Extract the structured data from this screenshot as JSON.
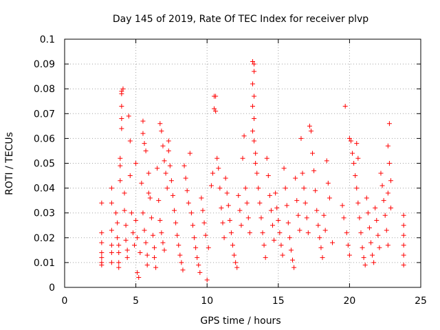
{
  "chart_data": {
    "type": "scatter",
    "title": "Day 145 of 2019, Rate Of TEC Index for receiver plvp",
    "xlabel": "GPS time / hours",
    "ylabel": "ROTI / TECUs",
    "xlim": [
      0,
      25
    ],
    "ylim": [
      0,
      0.1
    ],
    "x_ticks": [
      0,
      5,
      10,
      15,
      20,
      25
    ],
    "y_ticks": [
      0,
      0.01,
      0.02,
      0.03,
      0.04,
      0.05,
      0.06,
      0.07,
      0.08,
      0.09,
      0.1
    ],
    "x_tick_labels": [
      "0",
      "5",
      "10",
      "15",
      "20",
      "25"
    ],
    "y_tick_labels": [
      "0",
      "0.01",
      "0.02",
      "0.03",
      "0.04",
      "0.05",
      "0.06",
      "0.07",
      "0.08",
      "0.09",
      "0.1"
    ],
    "grid": true,
    "marker": "+",
    "series": [
      {
        "name": "ROTI",
        "color": "#ff0000",
        "points": [
          [
            2.6,
            0.034
          ],
          [
            2.6,
            0.022
          ],
          [
            2.6,
            0.018
          ],
          [
            2.6,
            0.014
          ],
          [
            2.6,
            0.012
          ],
          [
            2.6,
            0.01
          ],
          [
            2.6,
            0.009
          ],
          [
            3.3,
            0.04
          ],
          [
            3.3,
            0.034
          ],
          [
            3.3,
            0.023
          ],
          [
            3.3,
            0.017
          ],
          [
            3.3,
            0.014
          ],
          [
            3.3,
            0.01
          ],
          [
            3.6,
            0.03
          ],
          [
            3.7,
            0.026
          ],
          [
            3.7,
            0.02
          ],
          [
            3.8,
            0.017
          ],
          [
            3.8,
            0.014
          ],
          [
            3.8,
            0.01
          ],
          [
            3.8,
            0.008
          ],
          [
            3.9,
            0.052
          ],
          [
            3.9,
            0.049
          ],
          [
            3.9,
            0.043
          ],
          [
            4.0,
            0.079
          ],
          [
            4.0,
            0.078
          ],
          [
            4.1,
            0.08
          ],
          [
            4.0,
            0.073
          ],
          [
            4.0,
            0.068
          ],
          [
            4.0,
            0.064
          ],
          [
            4.2,
            0.038
          ],
          [
            4.2,
            0.031
          ],
          [
            4.3,
            0.025
          ],
          [
            4.3,
            0.019
          ],
          [
            4.4,
            0.015
          ],
          [
            4.4,
            0.012
          ],
          [
            4.5,
            0.069
          ],
          [
            4.6,
            0.059
          ],
          [
            4.6,
            0.045
          ],
          [
            4.7,
            0.03
          ],
          [
            4.8,
            0.022
          ],
          [
            4.9,
            0.017
          ],
          [
            5.0,
            0.05
          ],
          [
            5.0,
            0.027
          ],
          [
            5.1,
            0.02
          ],
          [
            5.1,
            0.006
          ],
          [
            5.2,
            0.004
          ],
          [
            5.3,
            0.014
          ],
          [
            5.4,
            0.042
          ],
          [
            5.5,
            0.03
          ],
          [
            5.6,
            0.023
          ],
          [
            5.7,
            0.018
          ],
          [
            5.8,
            0.013
          ],
          [
            5.8,
            0.009
          ],
          [
            5.5,
            0.067
          ],
          [
            5.5,
            0.062
          ],
          [
            5.6,
            0.058
          ],
          [
            5.7,
            0.055
          ],
          [
            5.9,
            0.046
          ],
          [
            5.9,
            0.038
          ],
          [
            6.0,
            0.036
          ],
          [
            6.1,
            0.028
          ],
          [
            6.2,
            0.021
          ],
          [
            6.3,
            0.016
          ],
          [
            6.3,
            0.012
          ],
          [
            6.4,
            0.008
          ],
          [
            6.5,
            0.048
          ],
          [
            6.6,
            0.035
          ],
          [
            6.7,
            0.027
          ],
          [
            6.8,
            0.022
          ],
          [
            6.9,
            0.018
          ],
          [
            7.0,
            0.015
          ],
          [
            6.7,
            0.066
          ],
          [
            6.8,
            0.063
          ],
          [
            6.9,
            0.057
          ],
          [
            7.0,
            0.051
          ],
          [
            7.1,
            0.046
          ],
          [
            7.2,
            0.04
          ],
          [
            7.3,
            0.059
          ],
          [
            7.3,
            0.055
          ],
          [
            7.4,
            0.049
          ],
          [
            7.5,
            0.043
          ],
          [
            7.6,
            0.037
          ],
          [
            7.7,
            0.031
          ],
          [
            7.8,
            0.026
          ],
          [
            7.9,
            0.021
          ],
          [
            8.0,
            0.017
          ],
          [
            8.1,
            0.013
          ],
          [
            8.2,
            0.01
          ],
          [
            8.3,
            0.007
          ],
          [
            8.4,
            0.049
          ],
          [
            8.5,
            0.044
          ],
          [
            8.6,
            0.039
          ],
          [
            8.7,
            0.034
          ],
          [
            8.8,
            0.054
          ],
          [
            8.9,
            0.03
          ],
          [
            9.0,
            0.025
          ],
          [
            9.1,
            0.02
          ],
          [
            9.2,
            0.016
          ],
          [
            9.3,
            0.012
          ],
          [
            9.4,
            0.009
          ],
          [
            9.5,
            0.006
          ],
          [
            9.6,
            0.036
          ],
          [
            9.7,
            0.031
          ],
          [
            9.8,
            0.026
          ],
          [
            9.9,
            0.021
          ],
          [
            10.0,
            0.003
          ],
          [
            10.1,
            0.016
          ],
          [
            10.3,
            0.041
          ],
          [
            10.4,
            0.046
          ],
          [
            10.5,
            0.077
          ],
          [
            10.6,
            0.077
          ],
          [
            10.5,
            0.072
          ],
          [
            10.6,
            0.071
          ],
          [
            10.7,
            0.052
          ],
          [
            10.8,
            0.048
          ],
          [
            10.9,
            0.04
          ],
          [
            11.0,
            0.032
          ],
          [
            11.1,
            0.026
          ],
          [
            11.2,
            0.02
          ],
          [
            11.3,
            0.044
          ],
          [
            11.4,
            0.038
          ],
          [
            11.5,
            0.033
          ],
          [
            11.6,
            0.027
          ],
          [
            11.7,
            0.022
          ],
          [
            11.8,
            0.017
          ],
          [
            11.9,
            0.013
          ],
          [
            12.0,
            0.01
          ],
          [
            12.1,
            0.008
          ],
          [
            12.2,
            0.037
          ],
          [
            12.3,
            0.031
          ],
          [
            12.4,
            0.025
          ],
          [
            12.5,
            0.052
          ],
          [
            12.6,
            0.061
          ],
          [
            12.7,
            0.04
          ],
          [
            12.8,
            0.034
          ],
          [
            12.9,
            0.028
          ],
          [
            13.0,
            0.022
          ],
          [
            13.2,
            0.091
          ],
          [
            13.3,
            0.09
          ],
          [
            13.3,
            0.087
          ],
          [
            13.2,
            0.082
          ],
          [
            13.3,
            0.077
          ],
          [
            13.2,
            0.073
          ],
          [
            13.3,
            0.068
          ],
          [
            13.2,
            0.063
          ],
          [
            13.3,
            0.059
          ],
          [
            13.4,
            0.054
          ],
          [
            13.4,
            0.05
          ],
          [
            13.5,
            0.046
          ],
          [
            13.6,
            0.04
          ],
          [
            13.7,
            0.034
          ],
          [
            13.8,
            0.028
          ],
          [
            13.9,
            0.022
          ],
          [
            14.0,
            0.017
          ],
          [
            14.1,
            0.012
          ],
          [
            14.2,
            0.052
          ],
          [
            14.3,
            0.045
          ],
          [
            14.4,
            0.037
          ],
          [
            14.5,
            0.031
          ],
          [
            14.6,
            0.025
          ],
          [
            14.7,
            0.019
          ],
          [
            14.8,
            0.038
          ],
          [
            14.9,
            0.032
          ],
          [
            15.0,
            0.027
          ],
          [
            15.1,
            0.022
          ],
          [
            15.2,
            0.017
          ],
          [
            15.3,
            0.013
          ],
          [
            15.4,
            0.048
          ],
          [
            15.5,
            0.04
          ],
          [
            15.6,
            0.033
          ],
          [
            15.7,
            0.026
          ],
          [
            15.8,
            0.02
          ],
          [
            15.9,
            0.015
          ],
          [
            16.0,
            0.011
          ],
          [
            16.1,
            0.008
          ],
          [
            16.2,
            0.044
          ],
          [
            16.3,
            0.035
          ],
          [
            16.4,
            0.029
          ],
          [
            16.5,
            0.023
          ],
          [
            16.6,
            0.06
          ],
          [
            16.7,
            0.046
          ],
          [
            16.8,
            0.04
          ],
          [
            16.9,
            0.034
          ],
          [
            17.0,
            0.028
          ],
          [
            17.1,
            0.022
          ],
          [
            17.2,
            0.065
          ],
          [
            17.3,
            0.063
          ],
          [
            17.4,
            0.054
          ],
          [
            17.5,
            0.047
          ],
          [
            17.6,
            0.039
          ],
          [
            17.7,
            0.031
          ],
          [
            17.8,
            0.025
          ],
          [
            17.9,
            0.02
          ],
          [
            18.0,
            0.016
          ],
          [
            18.1,
            0.012
          ],
          [
            18.2,
            0.029
          ],
          [
            18.3,
            0.023
          ],
          [
            18.4,
            0.051
          ],
          [
            18.5,
            0.042
          ],
          [
            18.6,
            0.036
          ],
          [
            18.8,
            0.018
          ],
          [
            19.5,
            0.033
          ],
          [
            19.6,
            0.028
          ],
          [
            19.7,
            0.073
          ],
          [
            19.8,
            0.022
          ],
          [
            19.9,
            0.017
          ],
          [
            20.0,
            0.013
          ],
          [
            20.0,
            0.06
          ],
          [
            20.1,
            0.059
          ],
          [
            20.2,
            0.054
          ],
          [
            20.3,
            0.05
          ],
          [
            20.4,
            0.045
          ],
          [
            20.5,
            0.04
          ],
          [
            20.5,
            0.058
          ],
          [
            20.6,
            0.052
          ],
          [
            20.6,
            0.034
          ],
          [
            20.7,
            0.028
          ],
          [
            20.8,
            0.022
          ],
          [
            20.9,
            0.016
          ],
          [
            21.0,
            0.012
          ],
          [
            21.1,
            0.009
          ],
          [
            21.2,
            0.036
          ],
          [
            21.3,
            0.03
          ],
          [
            21.4,
            0.024
          ],
          [
            21.5,
            0.018
          ],
          [
            21.6,
            0.013
          ],
          [
            21.7,
            0.01
          ],
          [
            21.8,
            0.032
          ],
          [
            21.9,
            0.027
          ],
          [
            22.0,
            0.021
          ],
          [
            22.1,
            0.016
          ],
          [
            22.2,
            0.046
          ],
          [
            22.3,
            0.041
          ],
          [
            22.4,
            0.035
          ],
          [
            22.5,
            0.029
          ],
          [
            22.6,
            0.023
          ],
          [
            22.7,
            0.017
          ],
          [
            22.8,
            0.066
          ],
          [
            22.7,
            0.057
          ],
          [
            22.8,
            0.05
          ],
          [
            22.9,
            0.043
          ],
          [
            22.7,
            0.038
          ],
          [
            22.9,
            0.032
          ],
          [
            23.8,
            0.029
          ],
          [
            23.8,
            0.025
          ],
          [
            23.8,
            0.021
          ],
          [
            23.8,
            0.017
          ],
          [
            23.8,
            0.013
          ],
          [
            23.8,
            0.009
          ]
        ]
      }
    ]
  }
}
